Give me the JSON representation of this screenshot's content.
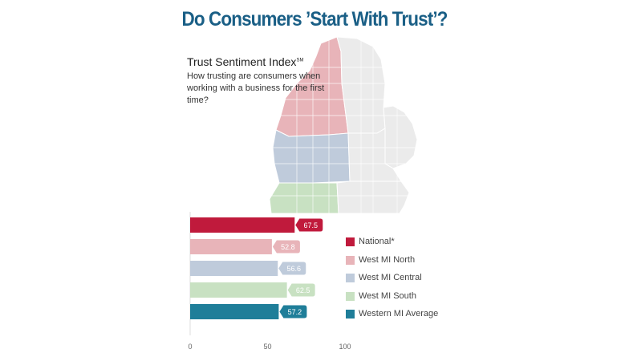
{
  "header": {
    "title": "Do Consumers ’Start With Trust’?"
  },
  "index": {
    "name": "Trust Sentiment Index",
    "mark": "SM",
    "question": "How trusting are consumers when working with a business for the first time?"
  },
  "colors": {
    "national": "#c01a3c",
    "north": "#e8b4b9",
    "central": "#bfcbdb",
    "south": "#c8e1c2",
    "average": "#1f7e99",
    "county_rest": "#ebebeb"
  },
  "chart_data": {
    "type": "bar",
    "orientation": "horizontal",
    "categories": [
      "National*",
      "West MI North",
      "West MI Central",
      "West MI South",
      "Western MI Average"
    ],
    "values": [
      67.5,
      52.8,
      56.6,
      62.5,
      57.2
    ],
    "value_labels": [
      "67.5",
      "52.8",
      "56.6",
      "62.5",
      "57.2"
    ],
    "xlim": [
      0,
      100
    ],
    "xticks": [
      "0",
      "50",
      "100"
    ],
    "legend": "right",
    "grid": false
  }
}
